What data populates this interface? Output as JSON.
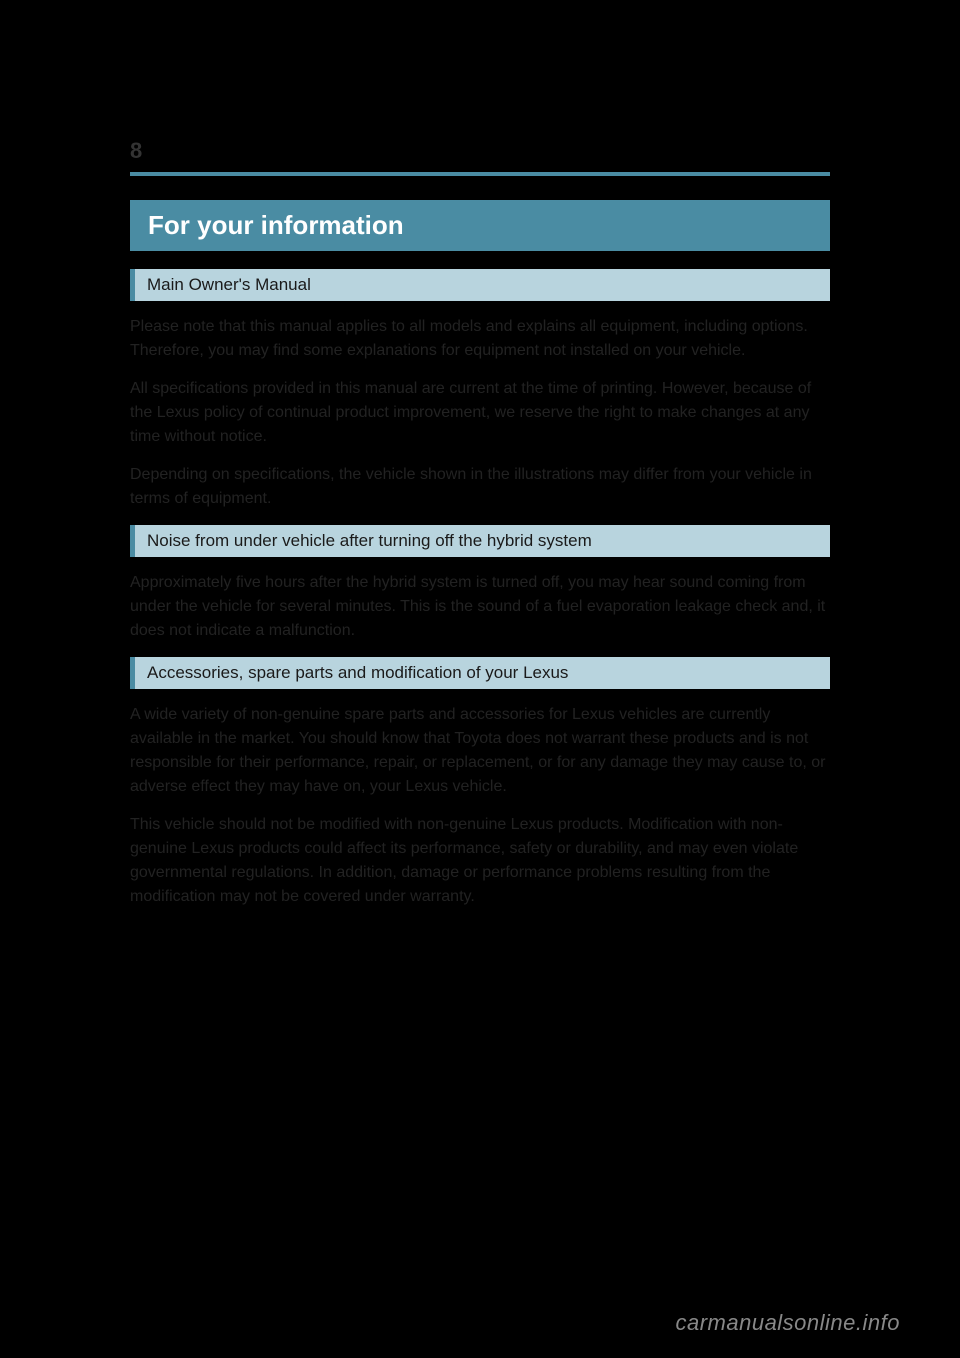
{
  "page": {
    "number": "8",
    "title": "For your information",
    "watermark": "carmanualsonline.info"
  },
  "colors": {
    "background": "#000000",
    "accent": "#4a8ca3",
    "sectionFill": "#b8d4de",
    "titleText": "#ffffff",
    "bodyText": "#222222",
    "sectionText": "#1a1a1a",
    "watermark": "#888888"
  },
  "sections": [
    {
      "header": "Main Owner's Manual",
      "paragraphs": [
        "Please note that this manual applies to all models and explains all equipment, including options. Therefore, you may find some explanations for equipment not installed on your vehicle.",
        "All specifications provided in this manual are current at the time of printing. However, because of the Lexus policy of continual product improvement, we reserve the right to make changes at any time without notice.",
        "Depending on specifications, the vehicle shown in the illustrations may differ from your vehicle in terms of equipment."
      ]
    },
    {
      "header": "Noise from under vehicle after turning off the hybrid system",
      "paragraphs": [
        "Approximately five hours after the hybrid system is turned off, you may hear sound coming from under the vehicle for several minutes. This is the sound of a fuel evaporation leakage check and, it does not indicate a malfunction."
      ]
    },
    {
      "header": "Accessories, spare parts and modification of your Lexus",
      "paragraphs": [
        "A wide variety of non-genuine spare parts and accessories for Lexus vehicles are currently available in the market. You should know that Toyota does not warrant these products and is not responsible for their performance, repair, or replacement, or for any damage they may cause to, or adverse effect they may have on, your Lexus vehicle.",
        "This vehicle should not be modified with non-genuine Lexus products. Modification with non-genuine Lexus products could affect its performance, safety or durability, and may even violate governmental regulations. In addition, damage or performance problems resulting from the modification may not be covered under warranty."
      ]
    }
  ]
}
